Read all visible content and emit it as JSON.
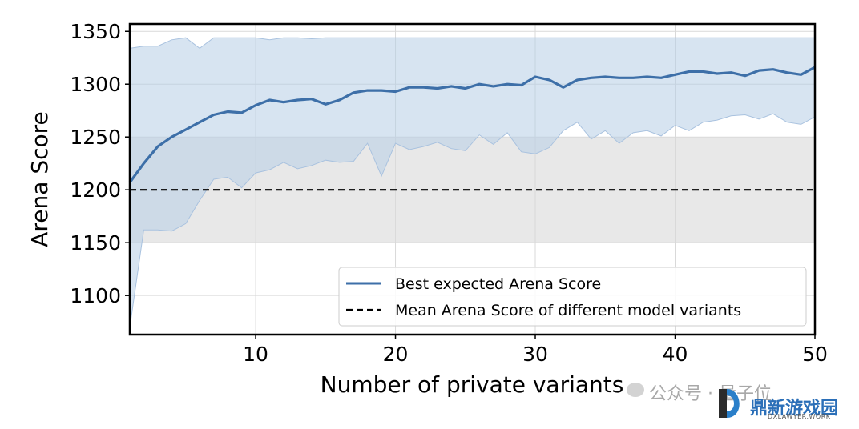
{
  "chart_data": {
    "type": "line",
    "title": "",
    "xlabel": "Number of private variants",
    "ylabel": "Arena Score",
    "xlim": [
      1,
      50
    ],
    "ylim": [
      1063,
      1357
    ],
    "xticks": [
      10,
      20,
      30,
      40,
      50
    ],
    "yticks": [
      1100,
      1150,
      1200,
      1250,
      1300,
      1350
    ],
    "grid": true,
    "legend_position": "lower-right",
    "series": [
      {
        "name": "Best expected Arena Score",
        "color": "#3d6fa8",
        "x": [
          1,
          2,
          3,
          4,
          5,
          6,
          7,
          8,
          9,
          10,
          11,
          12,
          13,
          14,
          15,
          16,
          17,
          18,
          19,
          20,
          21,
          22,
          23,
          24,
          25,
          26,
          27,
          28,
          29,
          30,
          31,
          32,
          33,
          34,
          35,
          36,
          37,
          38,
          39,
          40,
          41,
          42,
          43,
          44,
          45,
          46,
          47,
          48,
          49,
          50
        ],
        "values": [
          1207,
          1225,
          1241,
          1250,
          1257,
          1264,
          1271,
          1274,
          1273,
          1280,
          1285,
          1283,
          1285,
          1286,
          1281,
          1285,
          1292,
          1294,
          1294,
          1293,
          1297,
          1297,
          1296,
          1298,
          1296,
          1300,
          1298,
          1300,
          1299,
          1307,
          1304,
          1297,
          1304,
          1306,
          1307,
          1306,
          1306,
          1307,
          1306,
          1309,
          1312,
          1312,
          1310,
          1311,
          1308,
          1313,
          1314,
          1311,
          1309,
          1316
        ],
        "band_upper": [
          1334,
          1336,
          1336,
          1342,
          1344,
          1334,
          1344,
          1344,
          1344,
          1344,
          1342,
          1344,
          1344,
          1343,
          1344,
          1344,
          1344,
          1344,
          1344,
          1344,
          1344,
          1344,
          1344,
          1344,
          1344,
          1344,
          1344,
          1344,
          1344,
          1344,
          1344,
          1344,
          1344,
          1344,
          1344,
          1344,
          1344,
          1344,
          1344,
          1344,
          1344,
          1344,
          1344,
          1344,
          1344,
          1344,
          1344,
          1344,
          1344,
          1344
        ],
        "band_lower": [
          1070,
          1162,
          1162,
          1161,
          1168,
          1190,
          1210,
          1212,
          1202,
          1216,
          1219,
          1226,
          1220,
          1223,
          1228,
          1226,
          1227,
          1244,
          1213,
          1244,
          1238,
          1241,
          1245,
          1239,
          1237,
          1252,
          1243,
          1254,
          1236,
          1234,
          1240,
          1256,
          1264,
          1248,
          1256,
          1244,
          1254,
          1256,
          1251,
          1261,
          1256,
          1264,
          1266,
          1270,
          1271,
          1267,
          1272,
          1264,
          1262,
          1269
        ]
      },
      {
        "name": "Mean Arena Score of different model variants",
        "color": "#000000",
        "style": "dashed",
        "value": 1200,
        "band": [
          1150,
          1250
        ],
        "band_color": "#e8e8e8"
      }
    ]
  },
  "watermark": {
    "channel_text": "公众号 · 量子位",
    "brand_name": "鼎新游戏园",
    "brand_url": "DXLAWYER.WORK"
  }
}
